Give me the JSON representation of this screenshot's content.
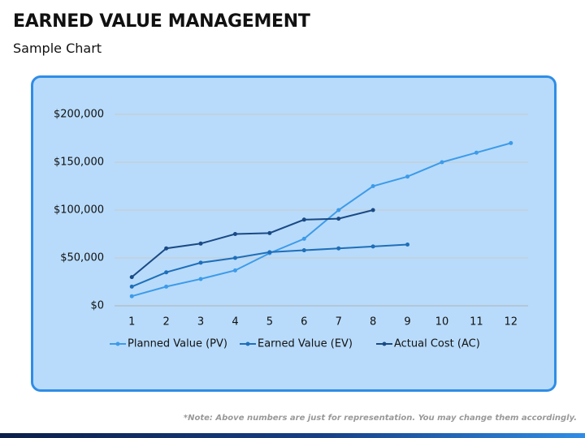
{
  "chart_data": {
    "type": "line",
    "title": "EARNED VALUE MANAGEMENT",
    "subtitle": "Sample Chart",
    "note": "*Note: Above numbers are just for representation. You may change them accordingly.",
    "categories": [
      1,
      2,
      3,
      4,
      5,
      6,
      7,
      8,
      9,
      10,
      11,
      12
    ],
    "series": [
      {
        "name": "Planned Value (PV)",
        "color": "#3d9be9",
        "values": [
          10000,
          20000,
          28000,
          37000,
          55000,
          70000,
          100000,
          125000,
          135000,
          150000,
          160000,
          170000
        ]
      },
      {
        "name": "Earned Value (EV)",
        "color": "#1f6fb8",
        "values": [
          20000,
          35000,
          45000,
          50000,
          56000,
          58000,
          60000,
          62000,
          64000,
          null,
          null,
          null
        ]
      },
      {
        "name": "Actual Cost (AC)",
        "color": "#1a4a85",
        "values": [
          30000,
          60000,
          65000,
          75000,
          76000,
          90000,
          91000,
          100000,
          null,
          null,
          null,
          null
        ]
      }
    ],
    "ylim": [
      0,
      200000
    ],
    "yticks": [
      {
        "value": 0,
        "label": "$0"
      },
      {
        "value": 50000,
        "label": "$50,000"
      },
      {
        "value": 100000,
        "label": "$100,000"
      },
      {
        "value": 150000,
        "label": "$150,000"
      },
      {
        "value": 200000,
        "label": "$200,000"
      }
    ],
    "grid": true,
    "legend": "bottom"
  }
}
